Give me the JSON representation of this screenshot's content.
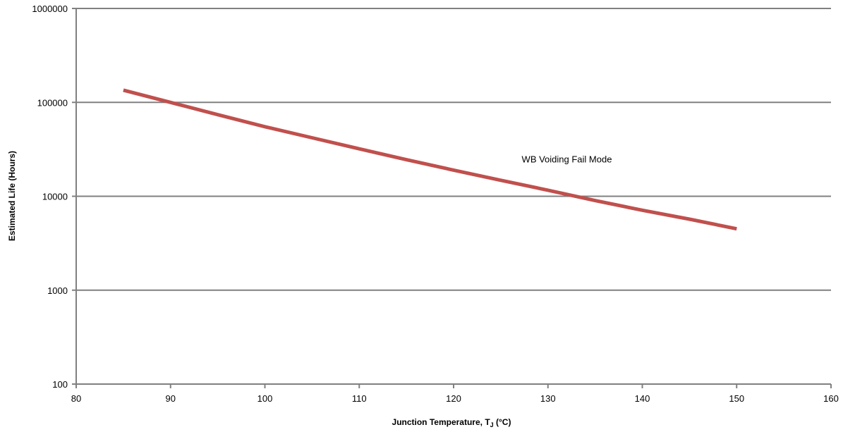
{
  "chart_data": {
    "type": "line",
    "title": "",
    "xlabel": "Junction Temperature, T",
    "xlabel_sub": "J",
    "xlabel_unit": " (°C)",
    "ylabel": "Estimated Life (Hours)",
    "xlim": [
      80,
      160
    ],
    "ylim": [
      100,
      1000000
    ],
    "yscale": "log",
    "grid": "horizontal",
    "x_ticks": [
      "80",
      "90",
      "100",
      "110",
      "120",
      "130",
      "140",
      "150",
      "160"
    ],
    "y_ticks": [
      "100",
      "1000",
      "10000",
      "100000",
      "1000000"
    ],
    "series": [
      {
        "name": "WB Voiding Fail Mode",
        "color": "#c0504d",
        "x": [
          85,
          90,
          95,
          100,
          105,
          110,
          115,
          120,
          125,
          130,
          135,
          140,
          145,
          150
        ],
        "y": [
          135000,
          100000,
          74000,
          55000,
          42000,
          32000,
          24500,
          19000,
          14800,
          11600,
          9000,
          7100,
          5700,
          4500
        ]
      }
    ],
    "annotations": [
      {
        "text": "WB Voiding Fail Mode",
        "x": 132,
        "y": 25000
      }
    ]
  }
}
